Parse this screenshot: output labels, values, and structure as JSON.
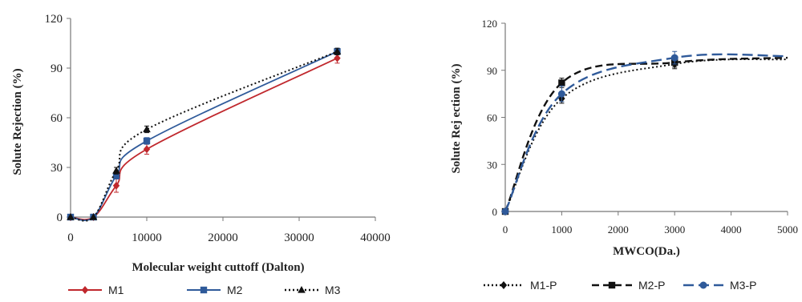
{
  "chart_data": [
    {
      "type": "line",
      "xlabel": "Molecular weight cuttoff (Dalton)",
      "ylabel": "Solute Rejection (%)",
      "xlim": [
        0,
        40000
      ],
      "ylim": [
        0,
        120
      ],
      "xticks": [
        "0",
        "10000",
        "20000",
        "30000",
        "40000"
      ],
      "yticks": [
        "0",
        "30",
        "60",
        "90",
        "120"
      ],
      "grid": false,
      "legend_position": "bottom",
      "colors": {
        "M1": "#c0282d",
        "M2": "#2f5a9a",
        "M3": "#111111"
      },
      "series": [
        {
          "name": "M1",
          "x": [
            0,
            3000,
            6000,
            10000,
            35000
          ],
          "values": [
            0,
            0,
            19,
            41,
            96
          ],
          "errors": [
            0,
            0,
            4,
            3,
            3
          ],
          "marker": "diamond",
          "line": "solid"
        },
        {
          "name": "M2",
          "x": [
            0,
            3000,
            6000,
            10000,
            35000
          ],
          "values": [
            0,
            0,
            25,
            46,
            100
          ],
          "errors": [
            0,
            0,
            2,
            2,
            2
          ],
          "marker": "square",
          "line": "solid"
        },
        {
          "name": "M3",
          "x": [
            0,
            3000,
            6000,
            10000,
            35000
          ],
          "values": [
            0,
            0,
            28,
            53,
            100
          ],
          "errors": [
            0,
            0,
            2,
            2,
            2
          ],
          "marker": "triangle",
          "line": "dotted"
        }
      ]
    },
    {
      "type": "line",
      "xlabel": "MWCO(Da.)",
      "ylabel": "Solute Rej ection (%)",
      "xlim": [
        0,
        5000
      ],
      "ylim": [
        0,
        120
      ],
      "xticks": [
        "0",
        "1000",
        "2000",
        "3000",
        "4000",
        "5000"
      ],
      "yticks": [
        "0",
        "30",
        "60",
        "90",
        "120"
      ],
      "grid": false,
      "legend_position": "bottom",
      "colors": {
        "M1-P": "#111111",
        "M2-P": "#111111",
        "M3-P": "#2f5a9a"
      },
      "series": [
        {
          "name": "M1-P",
          "x": [
            0,
            1000,
            3000,
            5000
          ],
          "values": [
            0,
            72,
            94,
            97
          ],
          "errors": [
            0,
            3,
            3,
            0
          ],
          "marker": "diamond",
          "line": "dotted"
        },
        {
          "name": "M2-P",
          "x": [
            0,
            1000,
            3000,
            5000
          ],
          "values": [
            0,
            82,
            95,
            98
          ],
          "errors": [
            0,
            3,
            3,
            0
          ],
          "marker": "square",
          "line": "dashed"
        },
        {
          "name": "M3-P",
          "x": [
            0,
            1000,
            3000,
            5000
          ],
          "values": [
            0,
            75,
            98,
            99
          ],
          "errors": [
            0,
            5,
            4,
            0
          ],
          "marker": "circle",
          "line": "longdash"
        }
      ]
    }
  ]
}
